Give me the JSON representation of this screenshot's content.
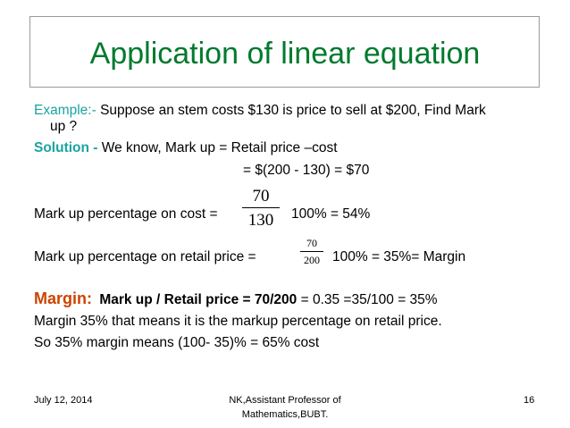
{
  "slide": {
    "title": "Application of linear equation",
    "example": {
      "label": "Example:-",
      "text1": " Suppose an stem costs $130 is price to sell at $200, Find Mark",
      "text2": "up ?"
    },
    "solution": {
      "label": "Solution -",
      "text": " We know, Mark up = Retail price –cost",
      "calc": "= $(200 - 130) = $70"
    },
    "markup_cost": {
      "label": "Mark up percentage on cost  =",
      "numerator": "70",
      "denominator": "130",
      "result": "100% = 54%"
    },
    "markup_retail": {
      "label": "Mark up percentage on retail price  =",
      "numerator": "70",
      "denominator": "200",
      "result": "100% = 35%= Margin"
    },
    "margin": {
      "label": "Margin:",
      "bold_text": "Mark up / Retail price = 70/200",
      "rest_text": " = 0.35 =35/100 = 35%"
    },
    "line_margin_meaning": "Margin 35% that means it is the markup percentage on retail price.",
    "line_cost": "So 35% margin means (100- 35)% = 65% cost"
  },
  "footer": {
    "date": "July 12, 2014",
    "author_line1": "NK,Assistant Professor of",
    "author_line2": "Mathematics,BUBT.",
    "page_number": "16"
  },
  "colors": {
    "title": "#007a2e",
    "label_teal": "#1aa3a3",
    "margin_label": "#cc4400"
  }
}
